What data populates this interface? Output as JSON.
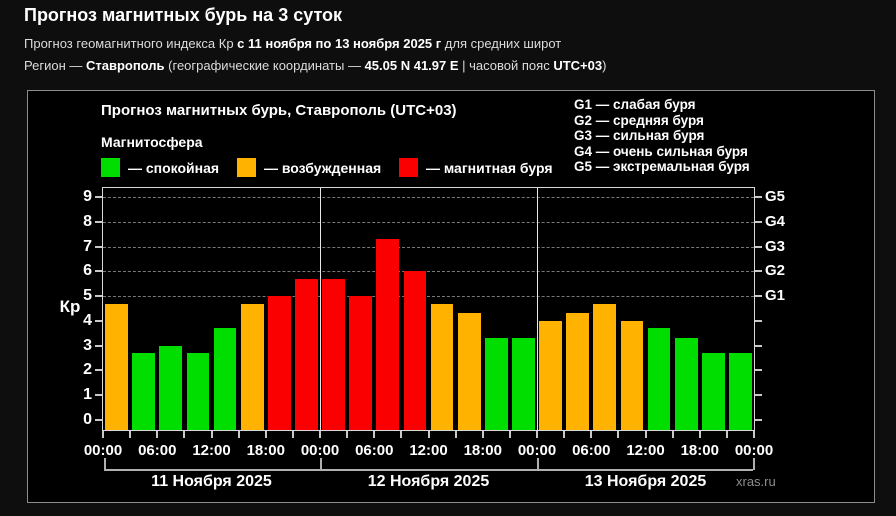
{
  "page": {
    "title": "Прогноз магнитных бурь на 3 суток",
    "subtitle_kp": {
      "prefix": "Прогноз геомагнитного индекса Кр ",
      "bold": "с 11 ноября по 13 ноября 2025 г",
      "suffix": " для средних широт"
    },
    "subtitle_region": {
      "prefix": "Регион — ",
      "city": "Ставрополь",
      "mid1": " (географические координаты — ",
      "coords": "45.05 N 41.97 E",
      "mid2": " | часовой пояс ",
      "tz": "UTC+03",
      "suffix": ")"
    }
  },
  "chart": {
    "title": "Прогноз магнитных бурь, Ставрополь (UTC+03)",
    "legend_title": "Магнитосфера",
    "legend": [
      {
        "name": "quiet",
        "label": "— спокойная",
        "color": "#00DE00"
      },
      {
        "name": "excited",
        "label": "— возбужденная",
        "color": "#FFB300"
      },
      {
        "name": "storm",
        "label": "— магнитная буря",
        "color": "#FB0000"
      }
    ],
    "g_legend": [
      "G1 — слабая буря",
      "G2 — средняя буря",
      "G3 — сильная буря",
      "G4 — очень сильная буря",
      "G5 — экстремальная буря"
    ],
    "ylabel": "Кр",
    "watermark": "xras.ru"
  },
  "chart_data": {
    "type": "bar",
    "ylabel": "Кр",
    "ylim": [
      0,
      9
    ],
    "bar_interval_hours": 3,
    "grid": "dashed horizontal lines at Kp 5-9 only",
    "legend_position": "top",
    "days": [
      {
        "label": "11 Ноября 2025",
        "values": [
          4.7,
          2.7,
          3.0,
          2.7,
          3.7,
          4.7,
          5.0,
          5.7
        ]
      },
      {
        "label": "12 Ноября 2025",
        "values": [
          5.7,
          5.0,
          7.3,
          6.0,
          4.7,
          4.3,
          3.3,
          3.3
        ]
      },
      {
        "label": "13 Ноября 2025",
        "values": [
          4.0,
          4.3,
          4.7,
          4.0,
          3.7,
          3.3,
          2.7,
          2.7
        ]
      }
    ],
    "time_ticks": [
      "00:00",
      "06:00",
      "12:00",
      "18:00",
      "00:00",
      "06:00",
      "12:00",
      "18:00",
      "00:00",
      "06:00",
      "12:00",
      "18:00",
      "00:00"
    ],
    "y_ticks": [
      0,
      1,
      2,
      3,
      4,
      5,
      6,
      7,
      8,
      9
    ],
    "g_ticks": [
      {
        "kp": 5,
        "label": "G1"
      },
      {
        "kp": 6,
        "label": "G2"
      },
      {
        "kp": 7,
        "label": "G3"
      },
      {
        "kp": 8,
        "label": "G4"
      },
      {
        "kp": 9,
        "label": "G5"
      }
    ],
    "colors": {
      "quiet": "#00DE00",
      "excited": "#FFB300",
      "storm": "#FB0000"
    },
    "thresholds": {
      "excited_min": 4,
      "storm_min": 5
    }
  }
}
